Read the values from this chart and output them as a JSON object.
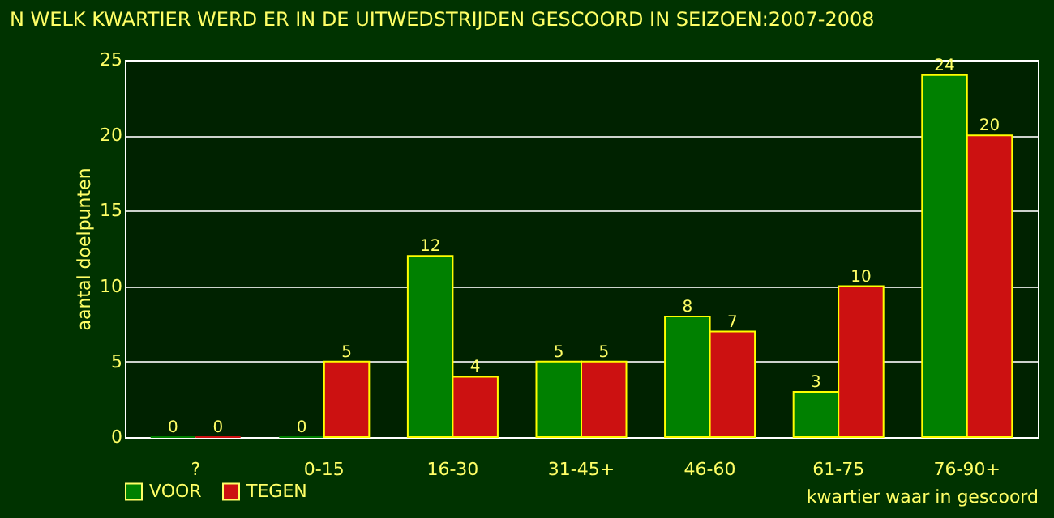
{
  "chart_data": {
    "type": "bar",
    "title": "N WELK KWARTIER WERD ER IN DE UITWEDSTRIJDEN GESCOORD IN SEIZOEN:2007-2008",
    "xlabel": "kwartier waar in gescoord",
    "ylabel": "aantal doelpunten",
    "categories": [
      "?",
      "0-15",
      "16-30",
      "31-45+",
      "46-60",
      "61-75",
      "76-90+"
    ],
    "series": [
      {
        "name": "VOOR",
        "color": "#008000",
        "values": [
          0,
          0,
          12,
          5,
          8,
          3,
          24
        ]
      },
      {
        "name": "TEGEN",
        "color": "#cc1111",
        "values": [
          0,
          5,
          4,
          5,
          7,
          10,
          20
        ]
      }
    ],
    "ylim": [
      0,
      25
    ],
    "yticks": [
      0,
      5,
      10,
      15,
      20,
      25
    ],
    "grid": "y",
    "legend": "bottom",
    "data_labels": true
  }
}
